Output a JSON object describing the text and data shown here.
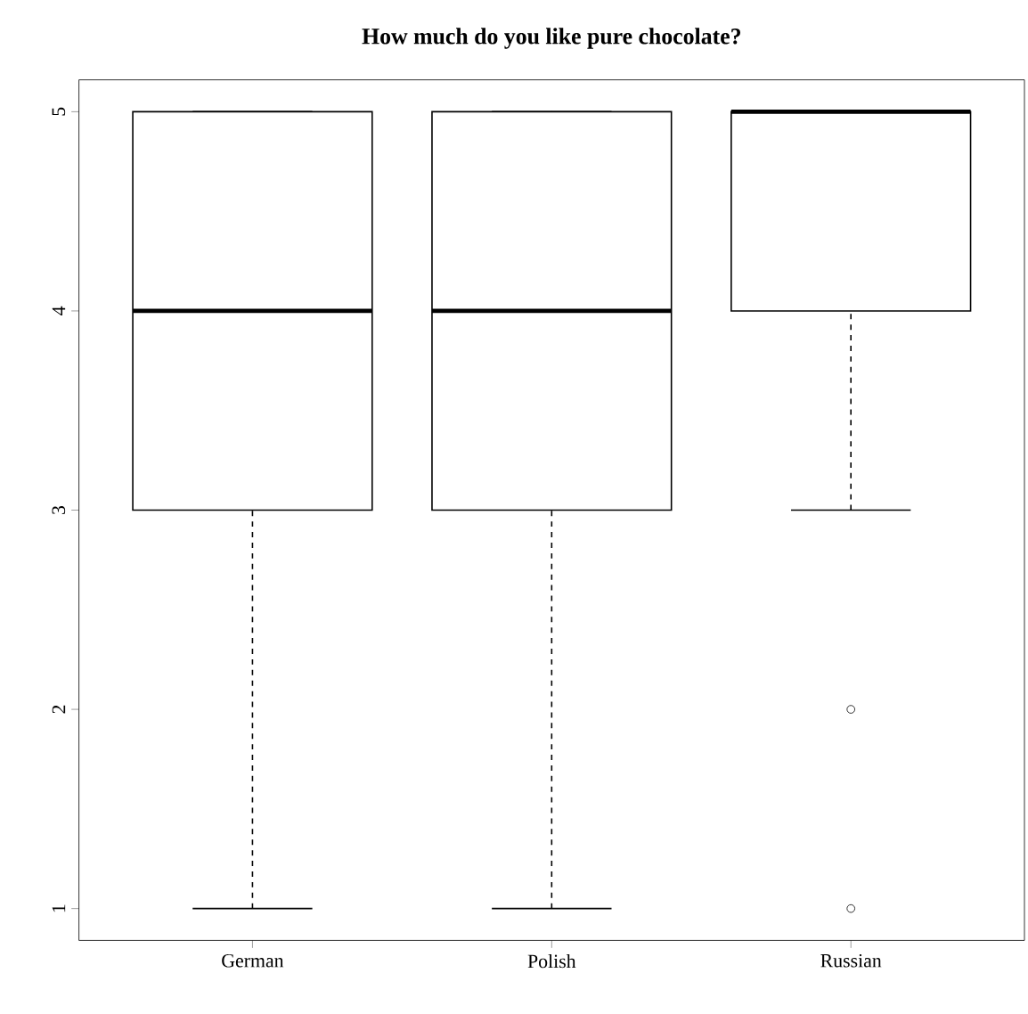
{
  "chart_data": {
    "type": "box",
    "title": "How much do you like pure chocolate?",
    "categories": [
      "German",
      "Polish",
      "Russian"
    ],
    "boxes": [
      {
        "low": 1,
        "q1": 3,
        "median": 4,
        "q3": 5,
        "high": 5
      },
      {
        "low": 1,
        "q1": 3,
        "median": 4,
        "q3": 5,
        "high": 5
      },
      {
        "low": 3,
        "q1": 4,
        "median": 5,
        "q3": 5,
        "high": 5,
        "outliers": [
          2,
          1
        ]
      }
    ],
    "color": "#000000",
    "ylim": [
      0.84,
      5.16
    ],
    "yticks": [
      1,
      2,
      3,
      4,
      5
    ]
  }
}
